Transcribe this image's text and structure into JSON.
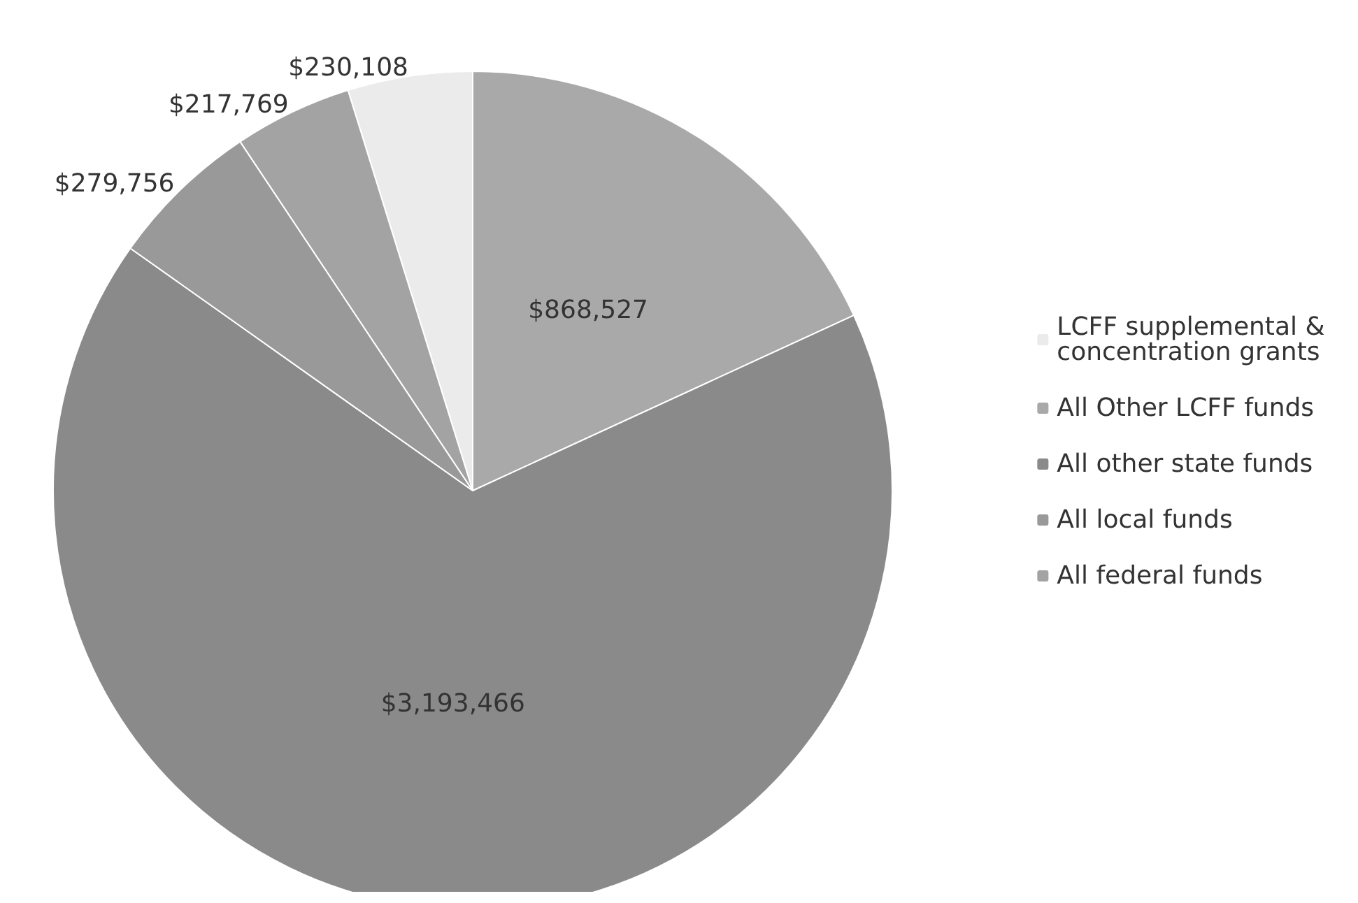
{
  "chart_data": {
    "type": "pie",
    "categories": [
      "LCFF supplemental & concentration grants",
      "All Other LCFF funds",
      "All other state funds",
      "All local funds",
      "All federal funds"
    ],
    "values": [
      230108,
      868527,
      3193466,
      279756,
      217769
    ],
    "value_labels": [
      "$230,108",
      "$868,527",
      "$3,193,466",
      "$279,756",
      "$217,769"
    ],
    "colors": [
      "#ebebeb",
      "#a9a9a9",
      "#8a8a8a",
      "#999999",
      "#a3a3a3"
    ],
    "legend": "right"
  }
}
